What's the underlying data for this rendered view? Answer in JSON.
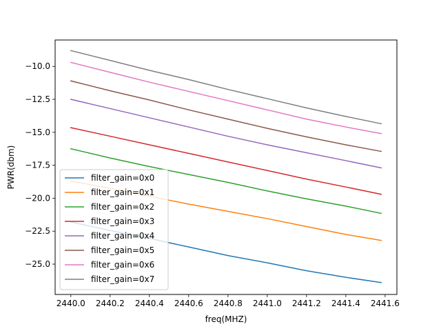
{
  "chart_data": {
    "type": "line",
    "title": "",
    "xlabel": "freq(MHZ)",
    "ylabel": "PWR(dbm)",
    "xlim": [
      2439.92,
      2441.66
    ],
    "ylim": [
      -27.3,
      -8.0
    ],
    "xticks": [
      2440.0,
      2440.2,
      2440.4,
      2440.6,
      2440.8,
      2441.0,
      2441.2,
      2441.4,
      2441.6
    ],
    "xtick_labels": [
      "2440.0",
      "2440.2",
      "2440.4",
      "2440.6",
      "2440.8",
      "2441.0",
      "2441.2",
      "2441.4",
      "2441.6"
    ],
    "yticks": [
      -25.0,
      -22.5,
      -20.0,
      -17.5,
      -15.0,
      -12.5,
      -10.0
    ],
    "ytick_labels": [
      "−25.0",
      "−22.5",
      "−20.0",
      "−17.5",
      "−15.0",
      "−12.5",
      "−10.0"
    ],
    "grid": false,
    "legend_position": "lower-left",
    "x": [
      2440.0,
      2440.2,
      2440.4,
      2440.6,
      2440.8,
      2441.0,
      2441.2,
      2441.4,
      2441.58
    ],
    "series": [
      {
        "name": "filter_gain=0x0",
        "color": "#1f77b4",
        "values": [
          -21.8,
          -22.45,
          -23.05,
          -23.7,
          -24.35,
          -24.9,
          -25.5,
          -26.0,
          -26.4
        ]
      },
      {
        "name": "filter_gain=0x1",
        "color": "#ff7f0e",
        "values": [
          -18.7,
          -19.25,
          -19.85,
          -20.45,
          -21.0,
          -21.55,
          -22.15,
          -22.75,
          -23.2
        ]
      },
      {
        "name": "filter_gain=0x2",
        "color": "#2ca02c",
        "values": [
          -16.25,
          -16.95,
          -17.6,
          -18.2,
          -18.8,
          -19.45,
          -20.05,
          -20.6,
          -21.15
        ]
      },
      {
        "name": "filter_gain=0x3",
        "color": "#d62728",
        "values": [
          -14.65,
          -15.3,
          -15.95,
          -16.6,
          -17.25,
          -17.9,
          -18.55,
          -19.15,
          -19.7
        ]
      },
      {
        "name": "filter_gain=0x4",
        "color": "#9467bd",
        "values": [
          -12.5,
          -13.2,
          -13.9,
          -14.6,
          -15.3,
          -15.95,
          -16.55,
          -17.15,
          -17.7
        ]
      },
      {
        "name": "filter_gain=0x5",
        "color": "#8c564b",
        "values": [
          -11.1,
          -11.85,
          -12.55,
          -13.3,
          -14.0,
          -14.7,
          -15.35,
          -15.95,
          -16.45
        ]
      },
      {
        "name": "filter_gain=0x6",
        "color": "#e377c2",
        "values": [
          -9.7,
          -10.45,
          -11.2,
          -11.9,
          -12.6,
          -13.3,
          -14.0,
          -14.6,
          -15.1
        ]
      },
      {
        "name": "filter_gain=0x7",
        "color": "#7f7f7f",
        "values": [
          -8.8,
          -9.55,
          -10.3,
          -11.0,
          -11.75,
          -12.45,
          -13.15,
          -13.8,
          -14.35
        ]
      }
    ]
  }
}
